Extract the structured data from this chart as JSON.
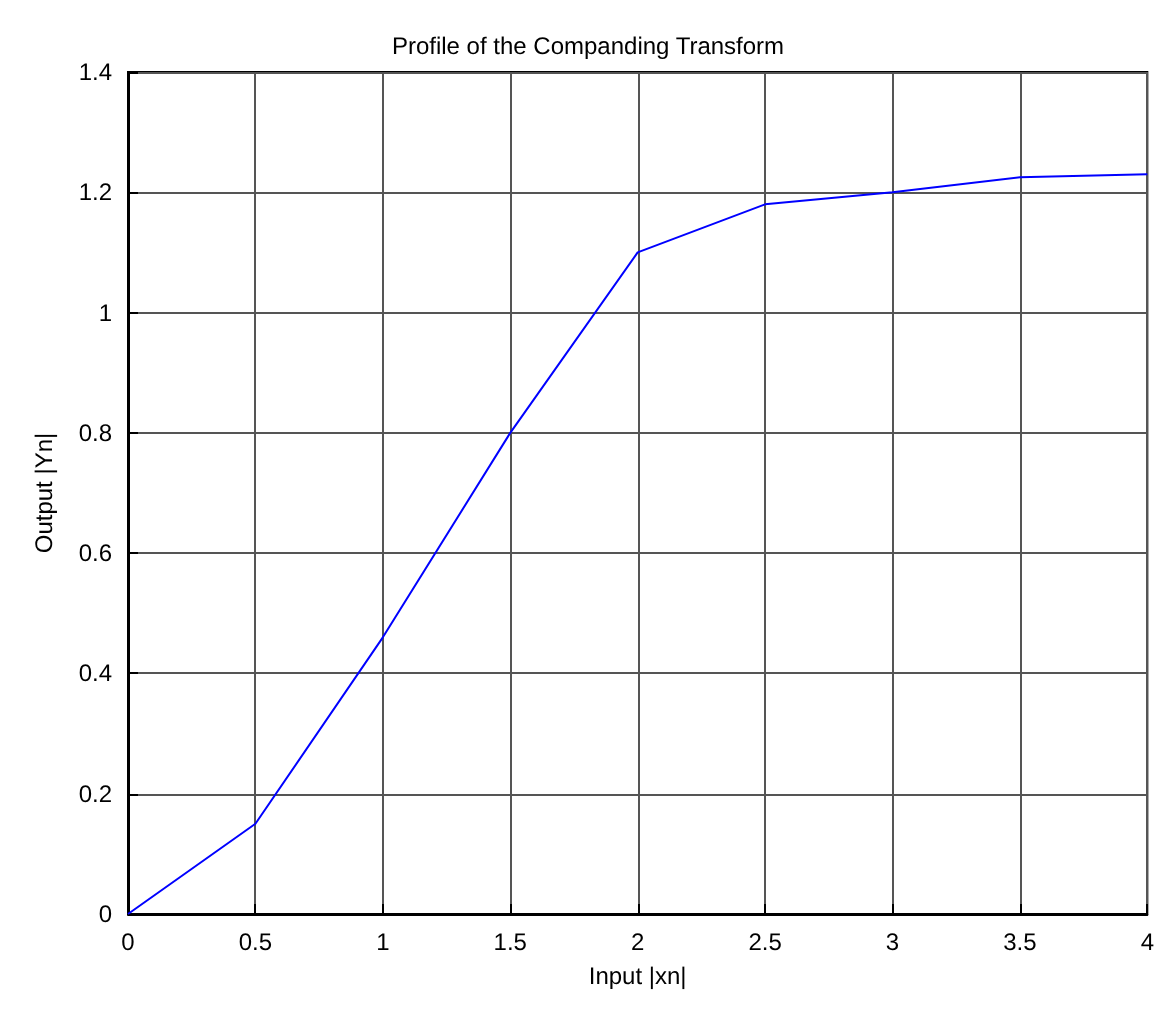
{
  "chart_data": {
    "type": "line",
    "title": "Profile of the Companding Transform",
    "xlabel": "Input |xn|",
    "ylabel": "Output |Yn|",
    "x": [
      0,
      0.5,
      1,
      1.5,
      2,
      2.5,
      3,
      3.5,
      4
    ],
    "series": [
      {
        "color": "#0000ff",
        "values": [
          0,
          0.15,
          0.46,
          0.8,
          1.1,
          1.18,
          1.2,
          1.225,
          1.23
        ]
      }
    ],
    "xlim": [
      0,
      4
    ],
    "xticks": [
      0,
      0.5,
      1,
      1.5,
      2,
      2.5,
      3,
      3.5,
      4
    ],
    "ylim": [
      0,
      1.4
    ],
    "yticks": [
      0,
      0.2,
      0.4,
      0.6,
      0.8,
      1,
      1.2,
      1.4
    ],
    "grid": true,
    "marker": "none",
    "line_style": "solid"
  }
}
